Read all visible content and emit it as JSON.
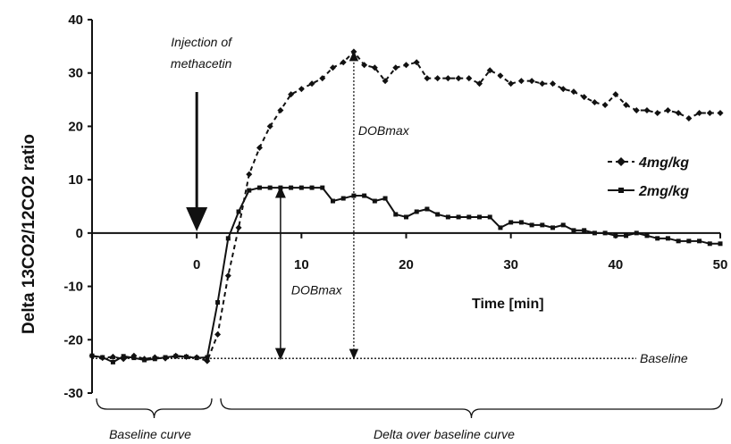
{
  "chart_data": {
    "type": "line",
    "xlabel": "Time [min]",
    "ylabel": "Delta 13CO2/12CO2 ratio",
    "xlim": [
      -10,
      50
    ],
    "ylim": [
      -30,
      40
    ],
    "x_ticks": [
      0,
      10,
      20,
      30,
      40,
      50
    ],
    "y_ticks": [
      40,
      30,
      20,
      10,
      0,
      -10,
      -20,
      -30
    ],
    "baseline_value": -23.5,
    "series": [
      {
        "name": "4mg/kg",
        "style": "dashed-diamond",
        "points": [
          [
            -10,
            -23
          ],
          [
            -9,
            -23.4
          ],
          [
            -8,
            -23.2
          ],
          [
            -7,
            -23.6
          ],
          [
            -6,
            -23
          ],
          [
            -5,
            -23.6
          ],
          [
            -4,
            -23.3
          ],
          [
            -3,
            -23.5
          ],
          [
            -2,
            -23
          ],
          [
            -1,
            -23.2
          ],
          [
            0,
            -23.3
          ],
          [
            1,
            -24
          ],
          [
            2,
            -19
          ],
          [
            3,
            -8
          ],
          [
            4,
            1
          ],
          [
            5,
            11
          ],
          [
            6,
            16
          ],
          [
            7,
            20
          ],
          [
            8,
            23
          ],
          [
            9,
            26
          ],
          [
            10,
            27
          ],
          [
            11,
            28
          ],
          [
            12,
            29
          ],
          [
            13,
            31
          ],
          [
            14,
            32
          ],
          [
            15,
            34
          ],
          [
            16,
            31.5
          ],
          [
            17,
            31
          ],
          [
            18,
            28.5
          ],
          [
            19,
            31
          ],
          [
            20,
            31.5
          ],
          [
            21,
            32
          ],
          [
            22,
            29
          ],
          [
            23,
            29
          ],
          [
            24,
            29
          ],
          [
            25,
            29
          ],
          [
            26,
            29
          ],
          [
            27,
            28
          ],
          [
            28,
            30.5
          ],
          [
            29,
            29.5
          ],
          [
            30,
            28
          ],
          [
            31,
            28.5
          ],
          [
            32,
            28.5
          ],
          [
            33,
            28
          ],
          [
            34,
            28
          ],
          [
            35,
            27
          ],
          [
            36,
            26.5
          ],
          [
            37,
            25.5
          ],
          [
            38,
            24.5
          ],
          [
            39,
            24
          ],
          [
            40,
            26
          ],
          [
            41,
            24
          ],
          [
            42,
            23
          ],
          [
            43,
            23
          ],
          [
            44,
            22.5
          ],
          [
            45,
            23
          ],
          [
            46,
            22.5
          ],
          [
            47,
            21.5
          ],
          [
            48,
            22.5
          ],
          [
            49,
            22.5
          ],
          [
            50,
            22.5
          ]
        ]
      },
      {
        "name": "2mg/kg",
        "style": "solid-square",
        "points": [
          [
            -10,
            -23
          ],
          [
            -9,
            -23.3
          ],
          [
            -8,
            -24.2
          ],
          [
            -7,
            -23.1
          ],
          [
            -6,
            -23.4
          ],
          [
            -5,
            -23.8
          ],
          [
            -4,
            -23.6
          ],
          [
            -3,
            -23.3
          ],
          [
            -2,
            -23.1
          ],
          [
            -1,
            -23.2
          ],
          [
            0,
            -23.4
          ],
          [
            1,
            -23.3
          ],
          [
            2,
            -13
          ],
          [
            3,
            -1
          ],
          [
            4,
            4
          ],
          [
            5,
            8
          ],
          [
            6,
            8.5
          ],
          [
            7,
            8.5
          ],
          [
            8,
            8.5
          ],
          [
            9,
            8.5
          ],
          [
            10,
            8.5
          ],
          [
            11,
            8.5
          ],
          [
            12,
            8.5
          ],
          [
            13,
            6
          ],
          [
            14,
            6.5
          ],
          [
            15,
            7
          ],
          [
            16,
            7
          ],
          [
            17,
            6
          ],
          [
            18,
            6.5
          ],
          [
            19,
            3.5
          ],
          [
            20,
            3
          ],
          [
            21,
            4
          ],
          [
            22,
            4.5
          ],
          [
            23,
            3.5
          ],
          [
            24,
            3
          ],
          [
            25,
            3
          ],
          [
            26,
            3
          ],
          [
            27,
            3
          ],
          [
            28,
            3
          ],
          [
            29,
            1
          ],
          [
            30,
            2
          ],
          [
            31,
            2
          ],
          [
            32,
            1.5
          ],
          [
            33,
            1.5
          ],
          [
            34,
            1
          ],
          [
            35,
            1.5
          ],
          [
            36,
            0.5
          ],
          [
            37,
            0.5
          ],
          [
            38,
            0
          ],
          [
            39,
            0
          ],
          [
            40,
            -0.5
          ],
          [
            41,
            -0.5
          ],
          [
            42,
            0
          ],
          [
            43,
            -0.5
          ],
          [
            44,
            -1
          ],
          [
            45,
            -1
          ],
          [
            46,
            -1.5
          ],
          [
            47,
            -1.5
          ],
          [
            48,
            -1.5
          ],
          [
            49,
            -2
          ],
          [
            50,
            -2
          ]
        ]
      }
    ],
    "annotations": {
      "injection_line1": "Injection of",
      "injection_line2": "methacetin",
      "dobmax": "DOBmax",
      "baseline": "Baseline",
      "baseline_curve": "Baseline curve",
      "delta_curve": "Delta over baseline curve"
    },
    "dobmax_4mg": {
      "x": 15,
      "y": 34
    },
    "dobmax_2mg": {
      "x": 8,
      "y": 8.5
    },
    "injection_x": 0,
    "legend_position": "right"
  }
}
